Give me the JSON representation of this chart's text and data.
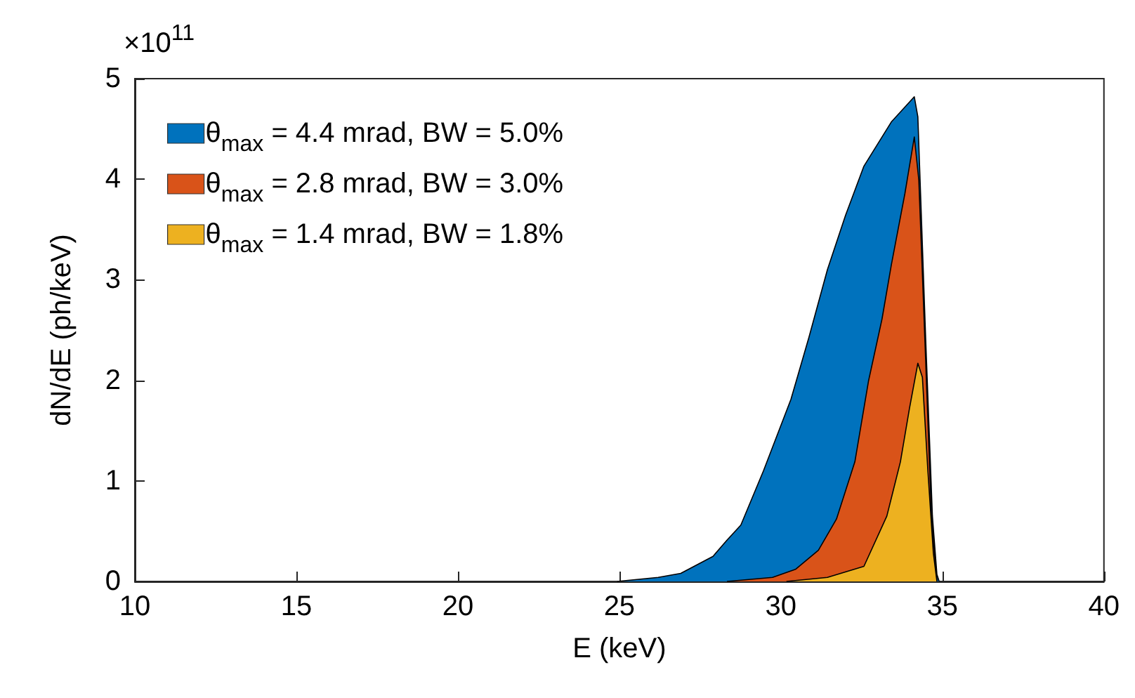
{
  "chart_data": {
    "type": "area",
    "xlabel": "E (keV)",
    "ylabel": "dN/dE (ph/keV)",
    "annotations": [
      "×10$^{11}$"
    ],
    "xlim": [
      10,
      40
    ],
    "xticks": [
      10,
      15,
      20,
      25,
      30,
      35,
      40
    ],
    "ylim": [
      0,
      5
    ],
    "yticks": [
      0,
      1,
      2,
      3,
      4,
      5
    ],
    "grid": false,
    "legend": "top left",
    "series": [
      {
        "name": "θ$_{max}$ = 4.4 mrad, BW = 5.0%",
        "color": "#0072bd",
        "x": [
          24.93,
          26.2,
          26.9,
          27.9,
          28.33,
          28.76,
          29.46,
          30.31,
          30.87,
          31.44,
          32.0,
          32.57,
          33.42,
          34.13,
          34.24,
          34.48,
          34.69,
          34.83,
          34.9
        ],
        "values": [
          0,
          0.04,
          0.08,
          0.25,
          0.41,
          0.56,
          1.1,
          1.81,
          2.43,
          3.1,
          3.64,
          4.13,
          4.57,
          4.82,
          4.62,
          2.43,
          0.65,
          0.07,
          0
        ]
      },
      {
        "name": "θ$_{max}$ = 2.8 mrad, BW = 3.0%",
        "color": "#d95319",
        "x": [
          28.33,
          29.74,
          30.45,
          31.16,
          31.72,
          32.29,
          32.71,
          33.13,
          33.42,
          33.84,
          34.13,
          34.27,
          34.48,
          34.66,
          34.83
        ],
        "values": [
          0,
          0.04,
          0.12,
          0.31,
          0.62,
          1.19,
          1.99,
          2.61,
          3.15,
          3.86,
          4.42,
          3.99,
          2.21,
          0.65,
          0.01
        ]
      },
      {
        "name": "θ$_{max}$ = 1.4 mrad, BW = 1.8%",
        "color": "#edb120",
        "x": [
          30.17,
          31.44,
          32.57,
          33.28,
          33.7,
          33.98,
          34.24,
          34.38,
          34.55,
          34.72,
          34.83
        ],
        "values": [
          0,
          0.04,
          0.15,
          0.65,
          1.19,
          1.72,
          2.17,
          2.03,
          1.1,
          0.28,
          0
        ]
      }
    ]
  }
}
